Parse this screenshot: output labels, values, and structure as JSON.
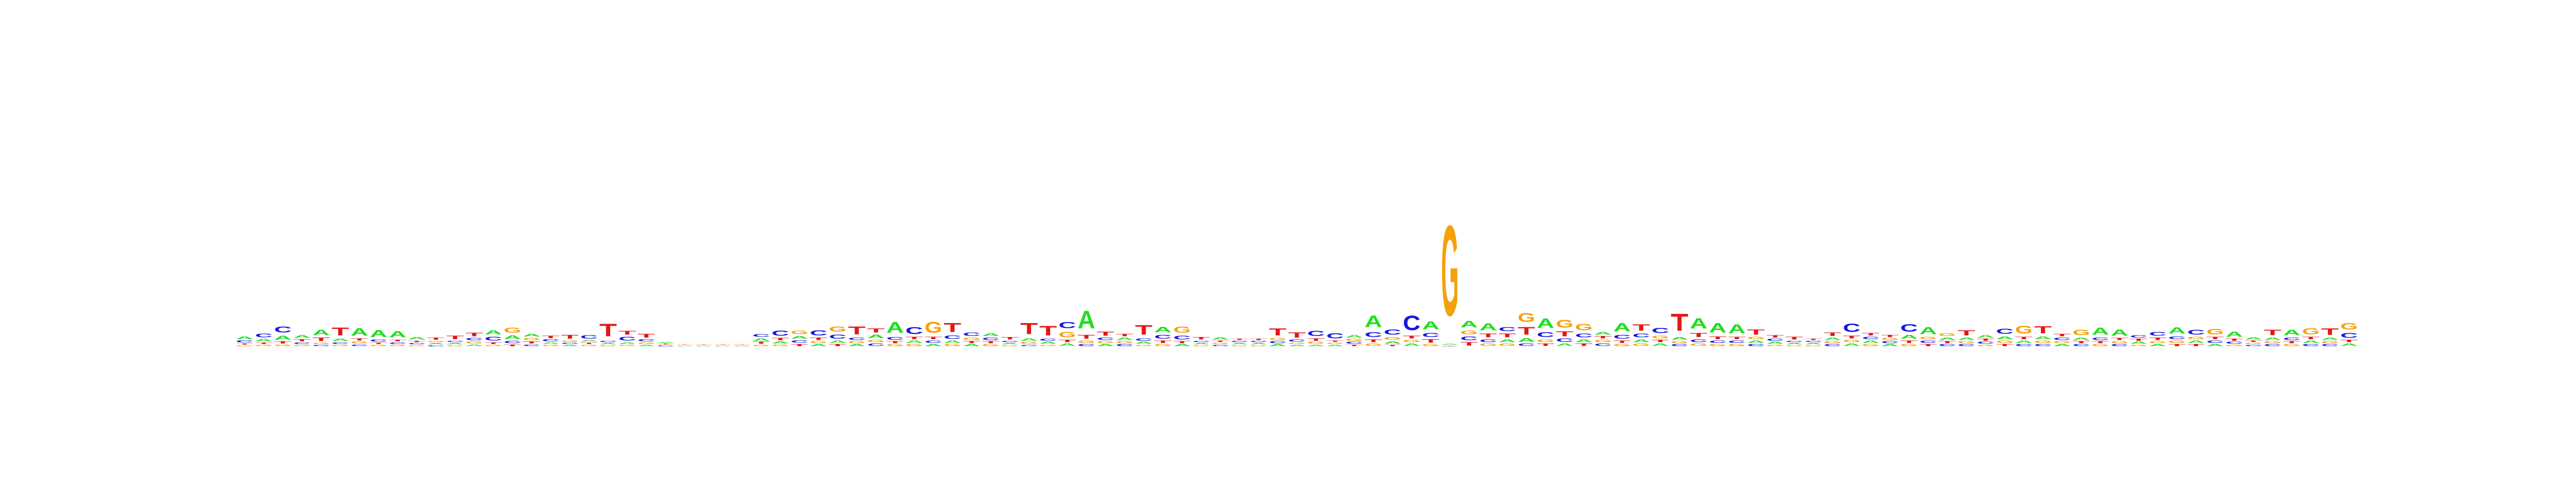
{
  "chart_data": {
    "type": "sequence-logo",
    "alphabet": [
      "A",
      "C",
      "G",
      "T"
    ],
    "colors": {
      "A": "#1fdf1f",
      "C": "#1515e6",
      "G": "#f5a10a",
      "T": "#e61515"
    },
    "ylim": [
      0,
      2
    ],
    "positions": [
      {
        "A": 0.12,
        "C": 0.08,
        "G": 0.05,
        "T": 0.05
      },
      {
        "A": 0.1,
        "C": 0.16,
        "G": 0.06,
        "T": 0.06
      },
      {
        "A": 0.18,
        "C": 0.25,
        "G": 0.07,
        "T": 0.08
      },
      {
        "A": 0.12,
        "C": 0.07,
        "G": 0.06,
        "T": 0.08
      },
      {
        "A": 0.24,
        "C": 0.06,
        "G": 0.06,
        "T": 0.14
      },
      {
        "A": 0.1,
        "C": 0.07,
        "G": 0.06,
        "T": 0.34
      },
      {
        "A": 0.32,
        "C": 0.07,
        "G": 0.08,
        "T": 0.08
      },
      {
        "A": 0.3,
        "C": 0.08,
        "G": 0.06,
        "T": 0.06
      },
      {
        "A": 0.26,
        "C": 0.07,
        "G": 0.06,
        "T": 0.07
      },
      {
        "A": 0.1,
        "C": 0.06,
        "G": 0.05,
        "T": 0.06
      },
      {
        "A": 0.06,
        "C": 0.05,
        "G": 0.06,
        "T": 0.08
      },
      {
        "A": 0.06,
        "C": 0.06,
        "G": 0.05,
        "T": 0.15
      },
      {
        "A": 0.07,
        "C": 0.1,
        "G": 0.08,
        "T": 0.14
      },
      {
        "A": 0.18,
        "C": 0.16,
        "G": 0.06,
        "T": 0.07
      },
      {
        "A": 0.16,
        "C": 0.1,
        "G": 0.22,
        "T": 0.07
      },
      {
        "A": 0.12,
        "C": 0.07,
        "G": 0.1,
        "T": 0.08
      },
      {
        "A": 0.07,
        "C": 0.08,
        "G": 0.06,
        "T": 0.1
      },
      {
        "A": 0.06,
        "C": 0.06,
        "G": 0.06,
        "T": 0.16
      },
      {
        "A": 0.07,
        "C": 0.14,
        "G": 0.06,
        "T": 0.06
      },
      {
        "A": 0.06,
        "C": 0.06,
        "G": 0.05,
        "T": 0.54
      },
      {
        "A": 0.07,
        "C": 0.16,
        "G": 0.06,
        "T": 0.16
      },
      {
        "A": 0.06,
        "C": 0.08,
        "G": 0.07,
        "T": 0.16
      },
      {
        "A": 0.04,
        "C": 0.03,
        "G": 0.03,
        "T": 0.03
      },
      {
        "A": 0.02,
        "C": 0.02,
        "G": 0.02,
        "T": 0.02
      },
      {
        "A": 0.02,
        "C": 0.02,
        "G": 0.02,
        "T": 0.02
      },
      {
        "A": 0.02,
        "C": 0.02,
        "G": 0.02,
        "T": 0.02
      },
      {
        "A": 0.02,
        "C": 0.02,
        "G": 0.02,
        "T": 0.02
      },
      {
        "A": 0.1,
        "C": 0.12,
        "G": 0.06,
        "T": 0.08
      },
      {
        "A": 0.08,
        "C": 0.22,
        "G": 0.07,
        "T": 0.1
      },
      {
        "A": 0.12,
        "C": 0.1,
        "G": 0.14,
        "T": 0.09
      },
      {
        "A": 0.08,
        "C": 0.22,
        "G": 0.08,
        "T": 0.1
      },
      {
        "A": 0.1,
        "C": 0.18,
        "G": 0.22,
        "T": 0.08
      },
      {
        "A": 0.08,
        "C": 0.1,
        "G": 0.08,
        "T": 0.34
      },
      {
        "A": 0.14,
        "C": 0.1,
        "G": 0.1,
        "T": 0.18
      },
      {
        "A": 0.46,
        "C": 0.12,
        "G": 0.08,
        "T": 0.08
      },
      {
        "A": 0.1,
        "C": 0.3,
        "G": 0.08,
        "T": 0.1
      },
      {
        "A": 0.08,
        "C": 0.1,
        "G": 0.46,
        "T": 0.1
      },
      {
        "A": 0.1,
        "C": 0.14,
        "G": 0.08,
        "T": 0.38
      },
      {
        "A": 0.08,
        "C": 0.14,
        "G": 0.1,
        "T": 0.08
      },
      {
        "A": 0.12,
        "C": 0.1,
        "G": 0.08,
        "T": 0.08
      },
      {
        "A": 0.06,
        "C": 0.06,
        "G": 0.05,
        "T": 0.1
      },
      {
        "A": 0.1,
        "C": 0.06,
        "G": 0.08,
        "T": 0.48
      },
      {
        "A": 0.08,
        "C": 0.08,
        "G": 0.06,
        "T": 0.4
      },
      {
        "A": 0.1,
        "C": 0.26,
        "G": 0.24,
        "T": 0.1
      },
      {
        "A": 0.76,
        "C": 0.08,
        "G": 0.1,
        "T": 0.16
      },
      {
        "A": 0.08,
        "C": 0.1,
        "G": 0.08,
        "T": 0.18
      },
      {
        "A": 0.1,
        "C": 0.08,
        "G": 0.08,
        "T": 0.1
      },
      {
        "A": 0.08,
        "C": 0.1,
        "G": 0.06,
        "T": 0.4
      },
      {
        "A": 0.24,
        "C": 0.16,
        "G": 0.08,
        "T": 0.1
      },
      {
        "A": 0.08,
        "C": 0.16,
        "G": 0.26,
        "T": 0.08
      },
      {
        "A": 0.06,
        "C": 0.06,
        "G": 0.05,
        "T": 0.1
      },
      {
        "A": 0.08,
        "C": 0.06,
        "G": 0.06,
        "T": 0.06
      },
      {
        "A": 0.06,
        "C": 0.06,
        "G": 0.05,
        "T": 0.06
      },
      {
        "A": 0.06,
        "C": 0.06,
        "G": 0.05,
        "T": 0.06
      },
      {
        "A": 0.08,
        "C": 0.08,
        "G": 0.08,
        "T": 0.3
      },
      {
        "A": 0.06,
        "C": 0.08,
        "G": 0.06,
        "T": 0.22
      },
      {
        "A": 0.06,
        "C": 0.22,
        "G": 0.08,
        "T": 0.1
      },
      {
        "A": 0.06,
        "C": 0.22,
        "G": 0.06,
        "T": 0.06
      },
      {
        "A": 0.1,
        "C": 0.08,
        "G": 0.08,
        "T": 0.06
      },
      {
        "A": 0.5,
        "C": 0.2,
        "G": 0.1,
        "T": 0.12
      },
      {
        "A": 0.1,
        "C": 0.22,
        "G": 0.12,
        "T": 0.06
      },
      {
        "A": 0.1,
        "C": 0.62,
        "G": 0.1,
        "T": 0.12
      },
      {
        "A": 0.34,
        "C": 0.18,
        "G": 0.08,
        "T": 0.14
      },
      {
        "A": 0.04,
        "C": 0.02,
        "G": 3.85,
        "T": 0.02
      },
      {
        "A": 0.28,
        "C": 0.16,
        "G": 0.16,
        "T": 0.14
      },
      {
        "A": 0.3,
        "C": 0.12,
        "G": 0.1,
        "T": 0.16
      },
      {
        "A": 0.12,
        "C": 0.18,
        "G": 0.1,
        "T": 0.16
      },
      {
        "A": 0.16,
        "C": 0.1,
        "G": 0.38,
        "T": 0.32
      },
      {
        "A": 0.4,
        "C": 0.2,
        "G": 0.12,
        "T": 0.1
      },
      {
        "A": 0.1,
        "C": 0.14,
        "G": 0.34,
        "T": 0.2
      },
      {
        "A": 0.12,
        "C": 0.16,
        "G": 0.28,
        "T": 0.1
      },
      {
        "A": 0.12,
        "C": 0.1,
        "G": 0.1,
        "T": 0.1
      },
      {
        "A": 0.36,
        "C": 0.16,
        "G": 0.08,
        "T": 0.1
      },
      {
        "A": 0.12,
        "C": 0.16,
        "G": 0.1,
        "T": 0.26
      },
      {
        "A": 0.1,
        "C": 0.22,
        "G": 0.12,
        "T": 0.1
      },
      {
        "A": 0.12,
        "C": 0.08,
        "G": 0.08,
        "T": 0.72
      },
      {
        "A": 0.44,
        "C": 0.12,
        "G": 0.1,
        "T": 0.18
      },
      {
        "A": 0.4,
        "C": 0.1,
        "G": 0.08,
        "T": 0.12
      },
      {
        "A": 0.38,
        "C": 0.1,
        "G": 0.08,
        "T": 0.1
      },
      {
        "A": 0.1,
        "C": 0.08,
        "G": 0.1,
        "T": 0.22
      },
      {
        "A": 0.08,
        "C": 0.08,
        "G": 0.06,
        "T": 0.1
      },
      {
        "A": 0.06,
        "C": 0.06,
        "G": 0.05,
        "T": 0.12
      },
      {
        "A": 0.06,
        "C": 0.06,
        "G": 0.05,
        "T": 0.06
      },
      {
        "A": 0.1,
        "C": 0.08,
        "G": 0.08,
        "T": 0.14
      },
      {
        "A": 0.1,
        "C": 0.36,
        "G": 0.1,
        "T": 0.12
      },
      {
        "A": 0.1,
        "C": 0.1,
        "G": 0.08,
        "T": 0.1
      },
      {
        "A": 0.08,
        "C": 0.08,
        "G": 0.08,
        "T": 0.08
      },
      {
        "A": 0.16,
        "C": 0.32,
        "G": 0.08,
        "T": 0.1
      },
      {
        "A": 0.3,
        "C": 0.1,
        "G": 0.1,
        "T": 0.08
      },
      {
        "A": 0.1,
        "C": 0.08,
        "G": 0.12,
        "T": 0.08
      },
      {
        "A": 0.1,
        "C": 0.08,
        "G": 0.08,
        "T": 0.22
      },
      {
        "A": 0.1,
        "C": 0.08,
        "G": 0.06,
        "T": 0.08
      },
      {
        "A": 0.12,
        "C": 0.22,
        "G": 0.1,
        "T": 0.08
      },
      {
        "A": 0.1,
        "C": 0.08,
        "G": 0.34,
        "T": 0.1
      },
      {
        "A": 0.12,
        "C": 0.08,
        "G": 0.1,
        "T": 0.3
      },
      {
        "A": 0.08,
        "C": 0.1,
        "G": 0.08,
        "T": 0.1
      },
      {
        "A": 0.1,
        "C": 0.08,
        "G": 0.24,
        "T": 0.08
      },
      {
        "A": 0.3,
        "C": 0.1,
        "G": 0.08,
        "T": 0.08
      },
      {
        "A": 0.26,
        "C": 0.08,
        "G": 0.08,
        "T": 0.08
      },
      {
        "A": 0.08,
        "C": 0.1,
        "G": 0.06,
        "T": 0.08
      },
      {
        "A": 0.08,
        "C": 0.16,
        "G": 0.08,
        "T": 0.1
      },
      {
        "A": 0.26,
        "C": 0.12,
        "G": 0.1,
        "T": 0.08
      },
      {
        "A": 0.1,
        "C": 0.2,
        "G": 0.1,
        "T": 0.08
      },
      {
        "A": 0.08,
        "C": 0.1,
        "G": 0.24,
        "T": 0.1
      },
      {
        "A": 0.22,
        "C": 0.08,
        "G": 0.06,
        "T": 0.08
      },
      {
        "A": 0.08,
        "C": 0.06,
        "G": 0.06,
        "T": 0.06
      },
      {
        "A": 0.1,
        "C": 0.08,
        "G": 0.08,
        "T": 0.24
      },
      {
        "A": 0.24,
        "C": 0.1,
        "G": 0.08,
        "T": 0.08
      },
      {
        "A": 0.1,
        "C": 0.08,
        "G": 0.26,
        "T": 0.1
      },
      {
        "A": 0.1,
        "C": 0.08,
        "G": 0.08,
        "T": 0.28
      },
      {
        "A": 0.1,
        "C": 0.2,
        "G": 0.28,
        "T": 0.1
      }
    ]
  }
}
